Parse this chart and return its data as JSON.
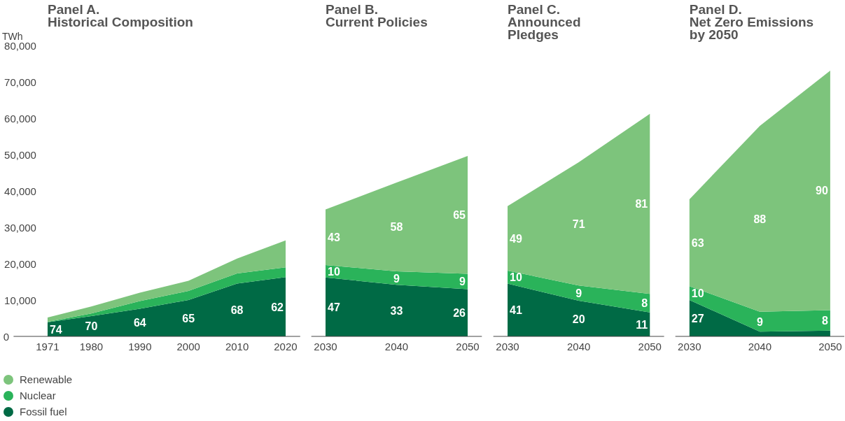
{
  "chart_data": [
    {
      "type": "area",
      "stacked": true,
      "title": "Panel A.\nHistorical Composition",
      "ylabel": "TWh",
      "x": [
        1971,
        1980,
        1990,
        2000,
        2010,
        2020
      ],
      "xlim": [
        1964,
        2023
      ],
      "xticks": [
        1971,
        1980,
        1990,
        2000,
        2010,
        2020
      ],
      "ylim": [
        0,
        80000
      ],
      "yticks": [
        {
          "value": 0,
          "label": "0"
        },
        {
          "value": 10000,
          "label": "10,000"
        },
        {
          "value": 20000,
          "label": "20,000"
        },
        {
          "value": 30000,
          "label": "30,000"
        },
        {
          "value": 40000,
          "label": "40,000"
        },
        {
          "value": 50000,
          "label": "50,000"
        },
        {
          "value": 60000,
          "label": "60,000"
        },
        {
          "value": 70000,
          "label": "70,000"
        },
        {
          "value": 80000,
          "label": "80,000"
        }
      ],
      "legend": "bottom left",
      "series": [
        {
          "name": "Fossil fuel",
          "color": "#006a45",
          "values": [
            3900,
            5600,
            7600,
            10000,
            14500,
            16300
          ]
        },
        {
          "name": "Nuclear",
          "color": "#2ab35a",
          "values": [
            100,
            700,
            2100,
            2500,
            2800,
            2700
          ]
        },
        {
          "name": "Renewable",
          "color": "#7dc47c",
          "values": [
            1200,
            1900,
            2300,
            2800,
            4100,
            7400
          ]
        }
      ],
      "annotations": [
        {
          "text": "74",
          "x": 1971,
          "y": 3900
        },
        {
          "text": "70",
          "x": 1980,
          "y": 5600
        },
        {
          "text": "64",
          "x": 1990,
          "y": 7600
        },
        {
          "text": "65",
          "x": 2000,
          "y": 10000
        },
        {
          "text": "68",
          "x": 2010,
          "y": 14500
        },
        {
          "text": "62",
          "x": 2020,
          "y": 16300
        }
      ]
    },
    {
      "type": "area",
      "stacked": true,
      "title": "Panel B.\nCurrent Policies",
      "x": [
        2030,
        2040,
        2050
      ],
      "xlim": [
        2028,
        2052
      ],
      "xticks": [
        2030,
        2040,
        2050
      ],
      "ylim": [
        0,
        80000
      ],
      "tick_labels": "x",
      "series": [
        {
          "color": "#006a45",
          "values": [
            16200,
            14200,
            13000
          ]
        },
        {
          "color": "#2ab35a",
          "values": [
            3400,
            3700,
            4200
          ]
        },
        {
          "color": "#7dc47c",
          "values": [
            15300,
            24400,
            32400
          ]
        }
      ],
      "annotations": [
        {
          "text": "47",
          "x": 2030,
          "y": 16200
        },
        {
          "text": "33",
          "x": 2040,
          "y": 14200
        },
        {
          "text": "26",
          "x": 2050,
          "y": 13000
        },
        {
          "text": "10",
          "x": 2030,
          "y": 19600
        },
        {
          "text": "9",
          "x": 2040,
          "y": 17900
        },
        {
          "text": "9",
          "x": 2050,
          "y": 17200
        },
        "43",
        "58",
        "65"
      ]
    },
    {
      "type": "area",
      "stacked": true,
      "title": "Panel C.\nAnnounced\nPledges",
      "x": [
        2030,
        2040,
        2050
      ],
      "xlim": [
        2028,
        2052
      ],
      "xticks": [
        2030,
        2040,
        2050
      ],
      "ylim": [
        0,
        80000
      ],
      "tick_labels": "x",
      "series": [
        {
          "color": "#006a45",
          "values": [
            14500,
            9800,
            6600
          ]
        },
        {
          "color": "#2ab35a",
          "values": [
            3600,
            4200,
            5100
          ]
        },
        {
          "color": "#7dc47c",
          "values": [
            17700,
            33900,
            49500
          ]
        }
      ],
      "annotations": [
        {
          "text": "41",
          "x": 2030,
          "y": 14500
        },
        {
          "text": "20",
          "x": 2040,
          "y": 9800
        },
        {
          "text": "11",
          "x": 2050,
          "y": 6600
        },
        {
          "text": "10",
          "x": 2030,
          "y": 18100
        },
        {
          "text": "9",
          "x": 2040,
          "y": 14000
        },
        {
          "text": "8",
          "x": 2050,
          "y": 11700
        },
        "49",
        "71",
        "81"
      ]
    },
    {
      "type": "area",
      "stacked": true,
      "title": "Panel D.\nNet Zero Emissions\nby 2050",
      "x": [
        2030,
        2040,
        2050
      ],
      "xlim": [
        2028,
        2052
      ],
      "xticks": [
        2030,
        2040,
        2050
      ],
      "ylim": [
        0,
        80000
      ],
      "tick_labels": "x",
      "series": [
        {
          "color": "#006a45",
          "values": [
            10000,
            1300,
            1600
          ]
        },
        {
          "color": "#2ab35a",
          "values": [
            3800,
            5500,
            5600
          ]
        },
        {
          "color": "#7dc47c",
          "values": [
            23900,
            51100,
            65900
          ]
        }
      ],
      "annotations": [
        {
          "text": "27",
          "x": 2030,
          "y": 10000
        },
        {
          "text": "10",
          "x": 2030,
          "y": 13800
        },
        {
          "text": "9",
          "x": 2040,
          "y": 6800
        },
        {
          "text": "8",
          "x": 2050,
          "y": 7200
        },
        "63",
        "88",
        "90"
      ]
    }
  ]
}
